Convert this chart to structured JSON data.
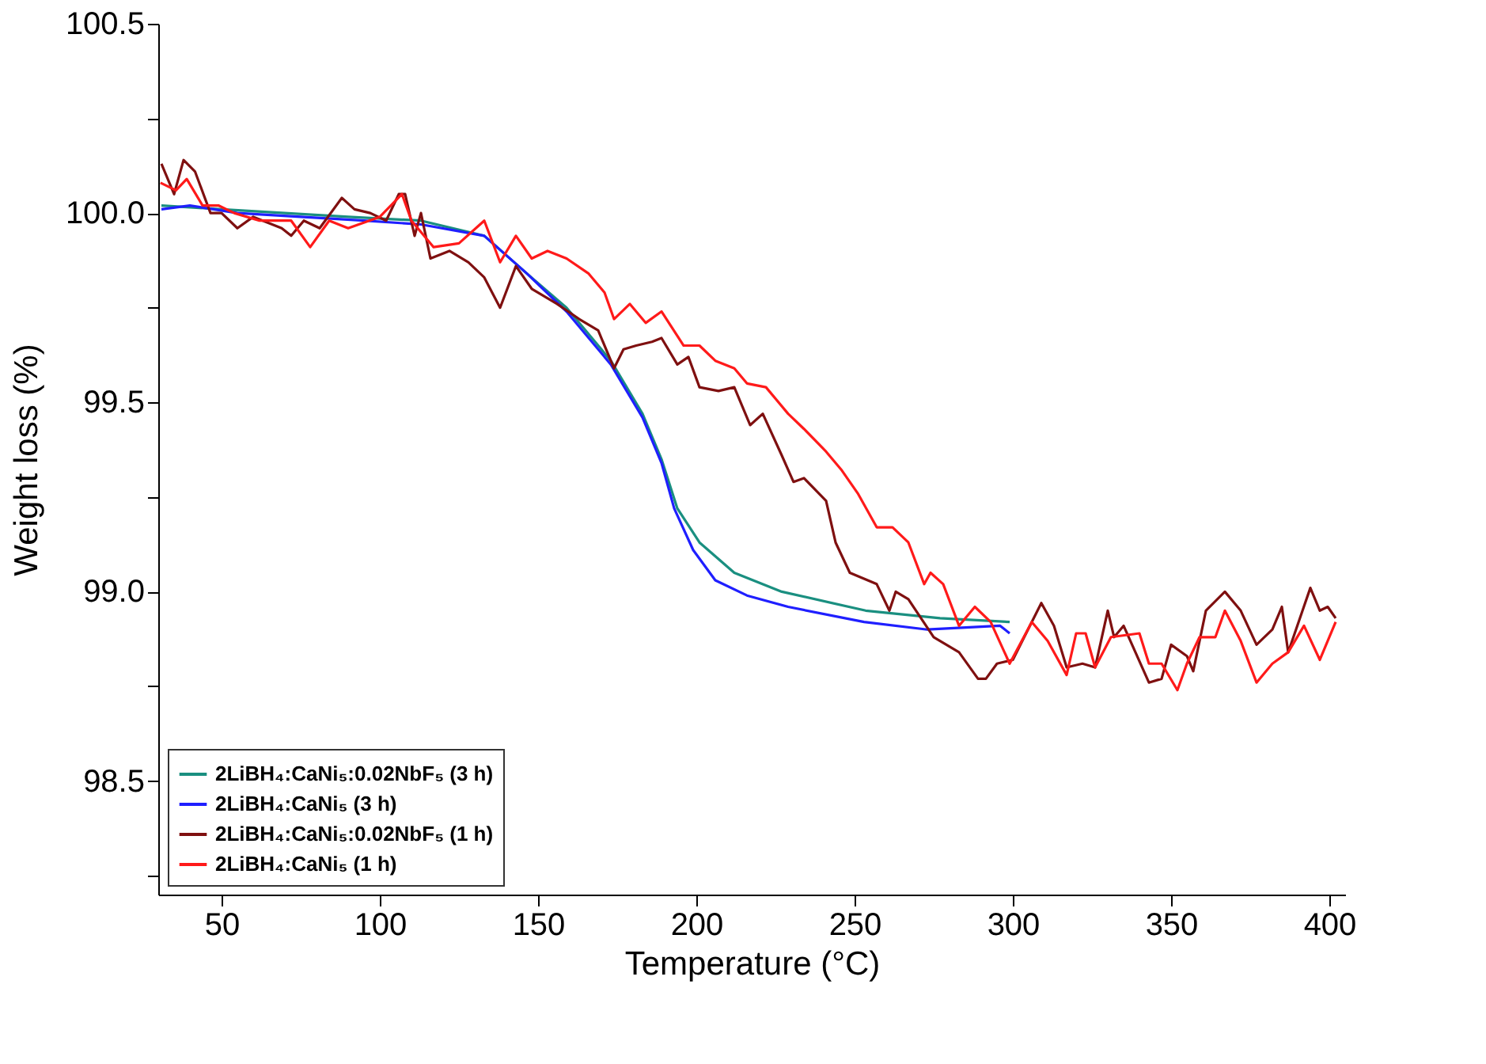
{
  "chart_data": {
    "type": "line",
    "xlabel": "Temperature (°C)",
    "ylabel": "Weight loss (%)",
    "xlim": [
      30,
      405
    ],
    "ylim": [
      98.2,
      100.5
    ],
    "xticks": [
      50,
      100,
      150,
      200,
      250,
      300,
      350,
      400
    ],
    "yticks": [
      {
        "value": 98.25,
        "label": null
      },
      {
        "value": 98.5,
        "label": "98.5"
      },
      {
        "value": 98.75,
        "label": null
      },
      {
        "value": 99,
        "label": "99.0"
      },
      {
        "value": 99.25,
        "label": null
      },
      {
        "value": 99.5,
        "label": "99.5"
      },
      {
        "value": 99.75,
        "label": null
      },
      {
        "value": 100,
        "label": "100.0"
      },
      {
        "value": 100.25,
        "label": null
      },
      {
        "value": 100.5,
        "label": "100.5"
      }
    ],
    "grid": false,
    "legend": "bottom left",
    "marker": "none",
    "line_style": "solid",
    "series": [
      {
        "name": "2LiBH₄:CaNi₅:0.02NbF₅ (3 h)",
        "color": "#1a8f80",
        "x": [
          31,
          50,
          70,
          90,
          113,
          133,
          146.5,
          159,
          173,
          183,
          189,
          194,
          201,
          212,
          227,
          253.5,
          277,
          299
        ],
        "values": [
          100.02,
          100.01,
          100.0,
          99.99,
          99.98,
          99.94,
          99.84,
          99.75,
          99.61,
          99.47,
          99.35,
          99.22,
          99.13,
          99.05,
          99.0,
          98.95,
          98.93,
          98.92
        ]
      },
      {
        "name": "2LiBH₄:CaNi₅ (3 h)",
        "color": "#1f1fff",
        "x": [
          31,
          40,
          55,
          75,
          95,
          113,
          133,
          146.5,
          159,
          173,
          183,
          189,
          193,
          199,
          206,
          216,
          229,
          253,
          273,
          296,
          299
        ],
        "values": [
          100.01,
          100.02,
          100.0,
          99.99,
          99.98,
          99.97,
          99.94,
          99.84,
          99.74,
          99.6,
          99.46,
          99.34,
          99.22,
          99.11,
          99.03,
          98.99,
          98.96,
          98.92,
          98.9,
          98.91,
          98.89
        ]
      },
      {
        "name": "2LiBH₄:CaNi₅:0.02NbF₅ (1 h)",
        "color": "#7f1010",
        "x": [
          31,
          35,
          38,
          41.6,
          46.5,
          50,
          55,
          60,
          69,
          72,
          76,
          81,
          88,
          92,
          97,
          102,
          106,
          108,
          111,
          113,
          116,
          122,
          128,
          133,
          138,
          143,
          148,
          156,
          163,
          169,
          174,
          177,
          181,
          186,
          189,
          194,
          197.5,
          201,
          207,
          212,
          217,
          221,
          227,
          230.7,
          234,
          241,
          244,
          248.5,
          257,
          261,
          263,
          267,
          275,
          283,
          289,
          291.5,
          295,
          300,
          303,
          309,
          313,
          317,
          322,
          326,
          330,
          332,
          335,
          343,
          347,
          350,
          355,
          357,
          361,
          367,
          372,
          377,
          382,
          385,
          387,
          394,
          397,
          399.5,
          402
        ],
        "values": [
          100.13,
          100.05,
          100.14,
          100.11,
          100.0,
          100.0,
          99.96,
          99.99,
          99.96,
          99.94,
          99.98,
          99.96,
          100.04,
          100.01,
          100.0,
          99.98,
          100.05,
          100.05,
          99.94,
          100.0,
          99.88,
          99.9,
          99.87,
          99.83,
          99.75,
          99.86,
          99.8,
          99.76,
          99.72,
          99.69,
          99.59,
          99.64,
          99.65,
          99.66,
          99.67,
          99.6,
          99.62,
          99.54,
          99.53,
          99.54,
          99.44,
          99.47,
          99.36,
          99.29,
          99.3,
          99.24,
          99.13,
          99.05,
          99.02,
          98.95,
          99.0,
          98.98,
          98.88,
          98.84,
          98.77,
          98.77,
          98.81,
          98.82,
          98.87,
          98.97,
          98.91,
          98.8,
          98.81,
          98.8,
          98.95,
          98.88,
          98.91,
          98.76,
          98.77,
          98.86,
          98.83,
          98.79,
          98.95,
          99.0,
          98.95,
          98.86,
          98.9,
          98.96,
          98.84,
          99.01,
          98.95,
          98.96,
          98.93
        ]
      },
      {
        "name": "2LiBH₄:CaNi₅ (1 h)",
        "color": "#ff1a1a",
        "x": [
          30.7,
          35.6,
          39,
          44,
          49,
          54,
          62,
          72,
          78,
          84,
          90,
          100,
          107,
          110,
          117,
          125,
          133,
          138,
          143,
          148,
          153,
          159,
          166,
          171,
          174,
          179,
          184,
          189,
          196,
          201,
          206,
          212,
          216,
          222,
          229,
          234,
          241,
          246,
          251,
          257,
          262,
          267,
          272,
          274,
          278,
          283,
          288,
          293,
          299,
          306,
          311,
          317,
          320,
          323,
          326,
          331,
          340,
          343,
          347,
          352,
          355,
          359,
          364,
          367,
          372,
          377,
          382,
          387,
          392,
          397,
          402
        ],
        "values": [
          100.08,
          100.06,
          100.09,
          100.02,
          100.02,
          100.0,
          99.98,
          99.98,
          99.91,
          99.98,
          99.96,
          99.99,
          100.05,
          99.98,
          99.91,
          99.92,
          99.98,
          99.87,
          99.94,
          99.88,
          99.9,
          99.88,
          99.84,
          99.79,
          99.72,
          99.76,
          99.71,
          99.74,
          99.65,
          99.65,
          99.61,
          99.59,
          99.55,
          99.54,
          99.47,
          99.43,
          99.37,
          99.32,
          99.26,
          99.17,
          99.17,
          99.13,
          99.02,
          99.05,
          99.02,
          98.91,
          98.96,
          98.92,
          98.81,
          98.92,
          98.87,
          98.78,
          98.89,
          98.89,
          98.8,
          98.88,
          98.89,
          98.81,
          98.81,
          98.74,
          98.81,
          98.88,
          98.88,
          98.95,
          98.87,
          98.76,
          98.81,
          98.84,
          98.91,
          98.82,
          98.92
        ]
      }
    ]
  }
}
